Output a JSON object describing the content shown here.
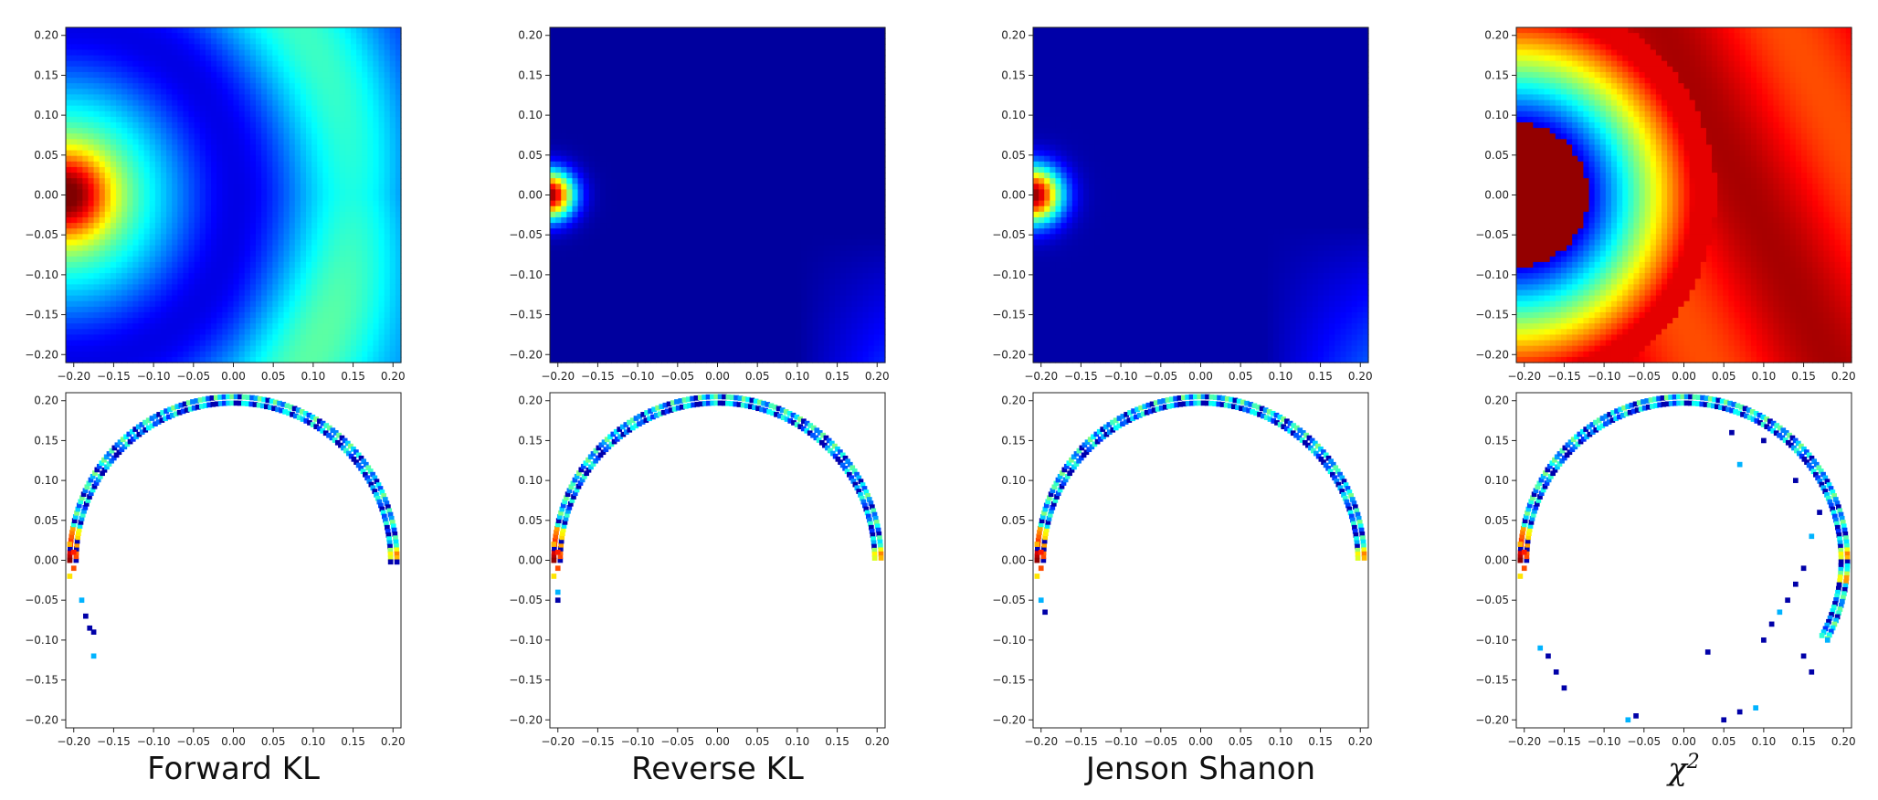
{
  "figure": {
    "panel_titles": [
      "Forward KL",
      "Reverse KL",
      "Jenson Shanon",
      "χ"
    ],
    "chi_superscript": "2",
    "row_meaning": [
      "heatmap",
      "histogram"
    ]
  },
  "chart_data": [
    {
      "type": "heatmap",
      "title": "",
      "xlabel": "",
      "ylabel": "",
      "xlim": [
        -0.21,
        0.21
      ],
      "ylim": [
        -0.21,
        0.21
      ],
      "ticks": [
        -0.2,
        -0.15,
        -0.1,
        -0.05,
        0.0,
        0.05,
        0.1,
        0.15,
        0.2
      ],
      "tick_labels": [
        "−0.20",
        "−0.15",
        "−0.10",
        "−0.05",
        "0.00",
        "0.05",
        "0.10",
        "0.15",
        "0.20"
      ],
      "colormap": "jet",
      "column": "Forward KL",
      "peak": [
        -0.21,
        0.0
      ],
      "description_values": {
        "peak_radius": 0.07,
        "background_level": 0.25,
        "corner_bottom_right_level": 0.9
      }
    },
    {
      "type": "heatmap",
      "title": "",
      "xlabel": "",
      "ylabel": "",
      "xlim": [
        -0.21,
        0.21
      ],
      "ylim": [
        -0.21,
        0.21
      ],
      "ticks": [
        -0.2,
        -0.15,
        -0.1,
        -0.05,
        0.0,
        0.05,
        0.1,
        0.15,
        0.2
      ],
      "tick_labels": [
        "−0.20",
        "−0.15",
        "−0.10",
        "−0.05",
        "0.00",
        "0.05",
        "0.10",
        "0.15",
        "0.20"
      ],
      "colormap": "jet",
      "column": "Reverse KL",
      "peak": [
        -0.21,
        0.0
      ],
      "description_values": {
        "peak_radius": 0.04,
        "background_level": 0.03,
        "corner_bottom_right_level": 0.2
      }
    },
    {
      "type": "heatmap",
      "title": "",
      "xlabel": "",
      "ylabel": "",
      "xlim": [
        -0.21,
        0.21
      ],
      "ylim": [
        -0.21,
        0.21
      ],
      "ticks": [
        -0.2,
        -0.15,
        -0.1,
        -0.05,
        0.0,
        0.05,
        0.1,
        0.15,
        0.2
      ],
      "tick_labels": [
        "−0.20",
        "−0.15",
        "−0.10",
        "−0.05",
        "0.00",
        "0.05",
        "0.10",
        "0.15",
        "0.20"
      ],
      "colormap": "jet",
      "column": "Jenson Shanon",
      "peak": [
        -0.21,
        0.0
      ],
      "description_values": {
        "peak_radius": 0.045,
        "background_level": 0.04,
        "corner_bottom_right_level": 0.25
      }
    },
    {
      "type": "heatmap",
      "title": "",
      "xlabel": "",
      "ylabel": "",
      "xlim": [
        -0.21,
        0.21
      ],
      "ylim": [
        -0.21,
        0.21
      ],
      "ticks": [
        -0.2,
        -0.15,
        -0.1,
        -0.05,
        0.0,
        0.05,
        0.1,
        0.15,
        0.2
      ],
      "tick_labels": [
        "−0.20",
        "−0.15",
        "−0.10",
        "−0.05",
        "0.00",
        "0.05",
        "0.10",
        "0.15",
        "0.20"
      ],
      "colormap": "jet",
      "column": "χ2",
      "peak": [
        -0.21,
        0.0
      ],
      "description_values": {
        "peak_radius": 0.09,
        "background_level": 0.9,
        "corner_bottom_right_level": 0.95
      }
    },
    {
      "type": "heatmap",
      "subtype": "2d-histogram",
      "xlim": [
        -0.21,
        0.21
      ],
      "ylim": [
        -0.21,
        0.21
      ],
      "column": "Forward KL",
      "colormap": "jet",
      "arc": {
        "center": [
          0.0,
          0.0
        ],
        "radius": 0.205,
        "angle_range_deg": [
          -2,
          180
        ]
      },
      "tail": [
        [
          -0.19,
          -0.05
        ],
        [
          -0.185,
          -0.07
        ],
        [
          -0.18,
          -0.085
        ],
        [
          -0.175,
          -0.09
        ],
        [
          -0.175,
          -0.12
        ]
      ]
    },
    {
      "type": "heatmap",
      "subtype": "2d-histogram",
      "xlim": [
        -0.21,
        0.21
      ],
      "ylim": [
        -0.21,
        0.21
      ],
      "column": "Reverse KL",
      "colormap": "jet",
      "arc": {
        "center": [
          0.0,
          0.0
        ],
        "radius": 0.205,
        "angle_range_deg": [
          0,
          180
        ]
      },
      "tail": [
        [
          -0.2,
          -0.04
        ],
        [
          -0.2,
          -0.05
        ]
      ]
    },
    {
      "type": "heatmap",
      "subtype": "2d-histogram",
      "xlim": [
        -0.21,
        0.21
      ],
      "ylim": [
        -0.21,
        0.21
      ],
      "column": "Jenson Shanon",
      "colormap": "jet",
      "arc": {
        "center": [
          0.0,
          0.0
        ],
        "radius": 0.205,
        "angle_range_deg": [
          0,
          180
        ]
      },
      "tail": [
        [
          -0.2,
          -0.05
        ],
        [
          -0.195,
          -0.065
        ]
      ]
    },
    {
      "type": "heatmap",
      "subtype": "2d-histogram",
      "xlim": [
        -0.21,
        0.21
      ],
      "ylim": [
        -0.21,
        0.21
      ],
      "column": "χ2",
      "colormap": "jet",
      "arc": {
        "center": [
          0.0,
          0.0
        ],
        "radius": 0.205,
        "angle_range_deg": [
          -30,
          180
        ]
      },
      "scatter": [
        [
          -0.18,
          -0.11
        ],
        [
          -0.17,
          -0.12
        ],
        [
          -0.16,
          -0.14
        ],
        [
          -0.15,
          -0.16
        ],
        [
          -0.07,
          -0.2
        ],
        [
          -0.06,
          -0.195
        ],
        [
          0.05,
          -0.2
        ],
        [
          0.07,
          -0.19
        ],
        [
          0.09,
          -0.185
        ],
        [
          0.03,
          -0.115
        ],
        [
          0.1,
          -0.1
        ],
        [
          0.11,
          -0.08
        ],
        [
          0.12,
          -0.065
        ],
        [
          0.13,
          -0.05
        ],
        [
          0.14,
          -0.03
        ],
        [
          0.15,
          -0.01
        ],
        [
          0.16,
          0.03
        ],
        [
          0.17,
          0.06
        ],
        [
          0.14,
          0.1
        ],
        [
          0.1,
          0.15
        ],
        [
          0.07,
          0.12
        ],
        [
          0.06,
          0.16
        ],
        [
          0.15,
          -0.12
        ],
        [
          0.16,
          -0.14
        ],
        [
          0.18,
          -0.1
        ]
      ]
    }
  ]
}
